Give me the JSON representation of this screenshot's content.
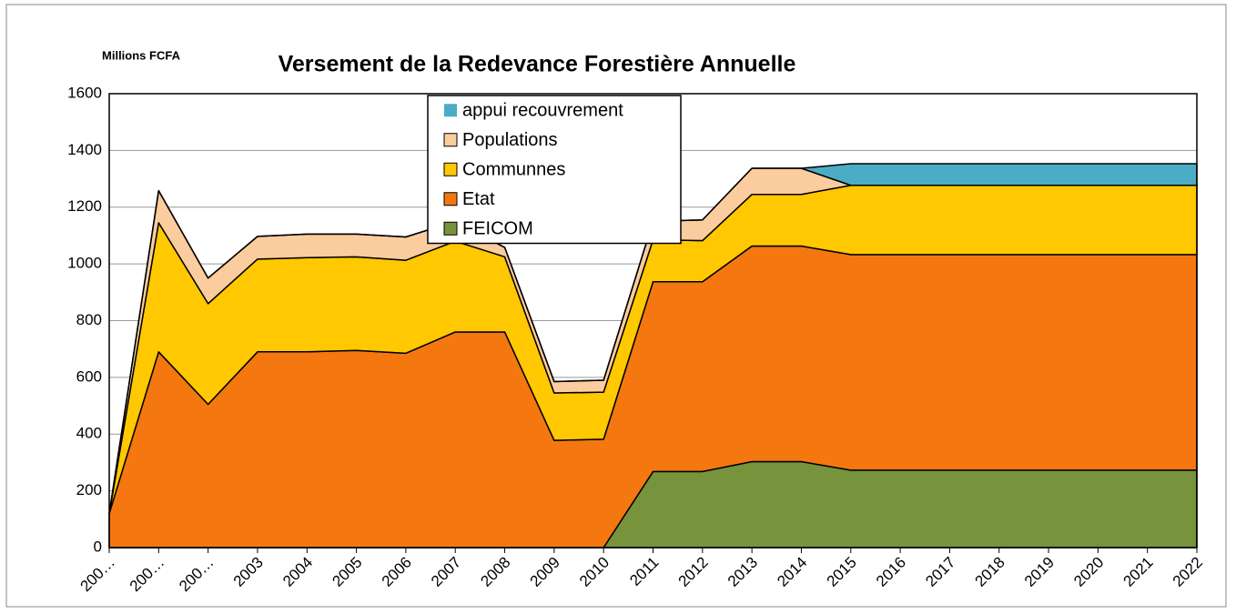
{
  "chart_data": {
    "type": "stacked_area",
    "title": "Versement de la Redevance Forestière Annuelle",
    "y_axis_label": "Millions FCFA",
    "categories": [
      "200…",
      "200…",
      "200…",
      "2003",
      "2004",
      "2005",
      "2006",
      "2007",
      "2008",
      "2009",
      "2010",
      "2011",
      "2012",
      "2013",
      "2014",
      "2015",
      "2016",
      "2017",
      "2018",
      "2019",
      "2020",
      "2021",
      "2022"
    ],
    "series": [
      {
        "name": "FEICOM",
        "color": "#77933c",
        "values": [
          0,
          0,
          0,
          0,
          0,
          0,
          0,
          0,
          0,
          0,
          0,
          268,
          268,
          303,
          303,
          273,
          273,
          273,
          273,
          273,
          273,
          273,
          273
        ]
      },
      {
        "name": "Etat",
        "color": "#f47710",
        "values": [
          120,
          690,
          505,
          690,
          690,
          695,
          685,
          760,
          760,
          378,
          382,
          669,
          669,
          760,
          760,
          760,
          760,
          760,
          760,
          760,
          760,
          760,
          760
        ]
      },
      {
        "name": "Communnes",
        "color": "#ffc800",
        "values": [
          0,
          455,
          355,
          327,
          332,
          330,
          328,
          320,
          265,
          167,
          166,
          148,
          145,
          182,
          182,
          244,
          244,
          244,
          244,
          244,
          244,
          244,
          244
        ]
      },
      {
        "name": "Populations",
        "color": "#fbcc9e",
        "values": [
          0,
          113,
          90,
          80,
          83,
          80,
          82,
          70,
          33,
          40,
          42,
          65,
          73,
          92,
          92,
          0,
          0,
          0,
          0,
          0,
          0,
          0,
          0
        ]
      },
      {
        "name": "appui recouvrement",
        "color": "#4bacc6",
        "values": [
          0,
          0,
          0,
          0,
          0,
          0,
          0,
          0,
          0,
          0,
          0,
          0,
          0,
          0,
          0,
          76,
          76,
          76,
          76,
          76,
          76,
          76,
          76
        ]
      }
    ],
    "ylim": [
      0,
      1600
    ],
    "yticks": [
      0,
      200,
      400,
      600,
      800,
      1000,
      1200,
      1400,
      1600
    ],
    "grid": true
  }
}
